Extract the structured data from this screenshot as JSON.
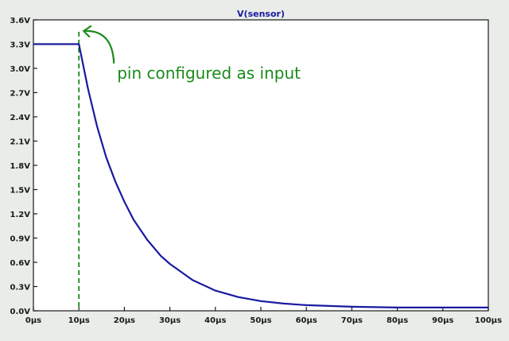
{
  "colors": {
    "background": "#e9ece8",
    "plot_background": "#ffffff",
    "axis": "#1a1a1a",
    "series": "#1a1aa0",
    "title": "#1a1aa0",
    "annotation": "#1a8a1a"
  },
  "chart_data": {
    "type": "line",
    "title": "V(sensor)",
    "xlabel": "",
    "ylabel": "",
    "xlim": [
      0,
      100
    ],
    "ylim": [
      0,
      3.6
    ],
    "grid": false,
    "x_ticks": [
      0,
      10,
      20,
      30,
      40,
      50,
      60,
      70,
      80,
      90,
      100
    ],
    "x_tick_labels": [
      "0µs",
      "10µs",
      "20µs",
      "30µs",
      "40µs",
      "50µs",
      "60µs",
      "70µs",
      "80µs",
      "90µs",
      "100µs"
    ],
    "y_ticks": [
      0,
      0.3,
      0.6,
      0.9,
      1.2,
      1.5,
      1.8,
      2.1,
      2.4,
      2.7,
      3.0,
      3.3,
      3.6
    ],
    "y_tick_labels": [
      "0.0V",
      "0.3V",
      "0.6V",
      "0.9V",
      "1.2V",
      "1.5V",
      "1.8V",
      "2.1V",
      "2.4V",
      "2.7V",
      "3.0V",
      "3.3V",
      "3.6V"
    ],
    "series": [
      {
        "x": [
          0,
          10,
          12,
          14,
          16,
          18,
          20,
          22,
          25,
          28,
          30,
          35,
          40,
          45,
          50,
          55,
          60,
          65,
          70,
          80,
          90,
          100
        ],
        "y": [
          3.3,
          3.3,
          2.75,
          2.28,
          1.9,
          1.6,
          1.35,
          1.13,
          0.88,
          0.68,
          0.58,
          0.38,
          0.25,
          0.17,
          0.12,
          0.09,
          0.07,
          0.06,
          0.05,
          0.04,
          0.04,
          0.04
        ]
      }
    ],
    "annotations": [
      {
        "text": "pin configured as input",
        "x": 10
      }
    ]
  }
}
